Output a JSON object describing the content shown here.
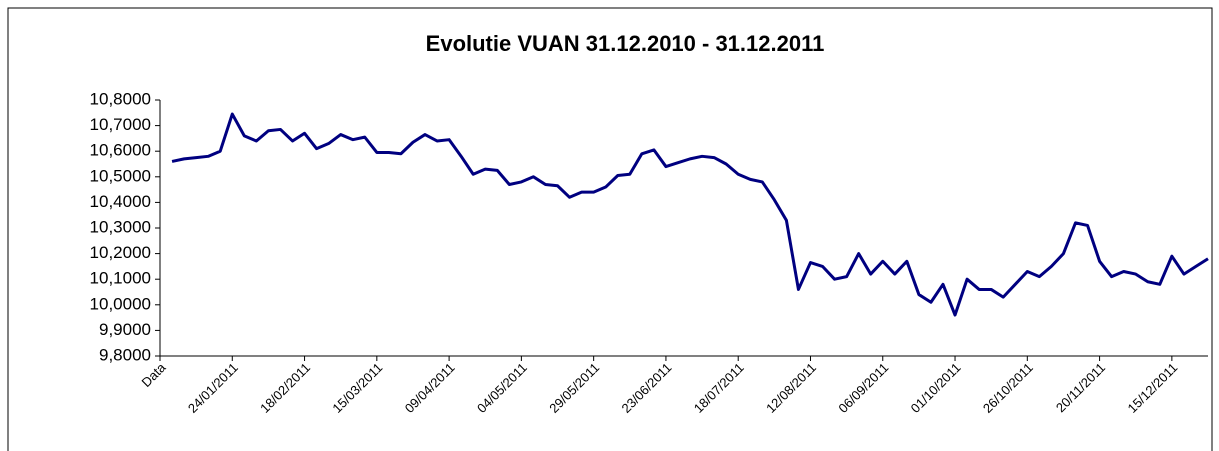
{
  "chart_data": {
    "type": "line",
    "title": "Evolutie VUAN 31.12.2010 - 31.12.2011",
    "categories": [
      "Data",
      null,
      null,
      null,
      null,
      null,
      "24/01/2011",
      null,
      null,
      null,
      null,
      null,
      "18/02/2011",
      null,
      null,
      null,
      null,
      null,
      "15/03/2011",
      null,
      null,
      null,
      null,
      null,
      "09/04/2011",
      null,
      null,
      null,
      null,
      null,
      "04/05/2011",
      null,
      null,
      null,
      null,
      null,
      "29/05/2011",
      null,
      null,
      null,
      null,
      null,
      "23/06/2011",
      null,
      null,
      null,
      null,
      null,
      "18/07/2011",
      null,
      null,
      null,
      null,
      null,
      "12/08/2011",
      null,
      null,
      null,
      null,
      null,
      "06/09/2011",
      null,
      null,
      null,
      null,
      null,
      "01/10/2011",
      null,
      null,
      null,
      null,
      null,
      "26/10/2011",
      null,
      null,
      null,
      null,
      null,
      "20/11/2011",
      null,
      null,
      null,
      null,
      null,
      "15/12/2011",
      null,
      null,
      null
    ],
    "series": [
      {
        "color": "#000080",
        "values": [
          null,
          10.56,
          10.57,
          10.575,
          10.58,
          10.6,
          10.745,
          10.66,
          10.64,
          10.68,
          10.685,
          10.64,
          10.67,
          10.61,
          10.63,
          10.665,
          10.645,
          10.655,
          10.595,
          10.595,
          10.59,
          10.635,
          10.665,
          10.64,
          10.645,
          10.58,
          10.51,
          10.53,
          10.525,
          10.47,
          10.48,
          10.5,
          10.47,
          10.465,
          10.42,
          10.44,
          10.44,
          10.46,
          10.505,
          10.51,
          10.59,
          10.605,
          10.54,
          10.555,
          10.57,
          10.58,
          10.575,
          10.55,
          10.51,
          10.49,
          10.48,
          10.41,
          10.33,
          10.06,
          10.165,
          10.15,
          10.1,
          10.11,
          10.2,
          10.12,
          10.17,
          10.12,
          10.17,
          10.04,
          10.01,
          10.08,
          9.96,
          10.1,
          10.06,
          10.06,
          10.03,
          10.08,
          10.13,
          10.11,
          10.15,
          10.2,
          10.32,
          10.31,
          10.17,
          10.11,
          10.13,
          10.12,
          10.09,
          10.08,
          10.19,
          10.12,
          10.15,
          10.18
        ]
      }
    ],
    "ylim": [
      9.8,
      10.8
    ],
    "yticks": [
      {
        "value": 9.8,
        "label": "9,8000"
      },
      {
        "value": 9.9,
        "label": "9,9000"
      },
      {
        "value": 10.0,
        "label": "10,0000"
      },
      {
        "value": 10.1,
        "label": "10,1000"
      },
      {
        "value": 10.2,
        "label": "10,2000"
      },
      {
        "value": 10.3,
        "label": "10,3000"
      },
      {
        "value": 10.4,
        "label": "10,4000"
      },
      {
        "value": 10.5,
        "label": "10,5000"
      },
      {
        "value": 10.6,
        "label": "10,6000"
      },
      {
        "value": 10.7,
        "label": "10,7000"
      },
      {
        "value": 10.8,
        "label": "10,8000"
      }
    ],
    "grid": false
  }
}
